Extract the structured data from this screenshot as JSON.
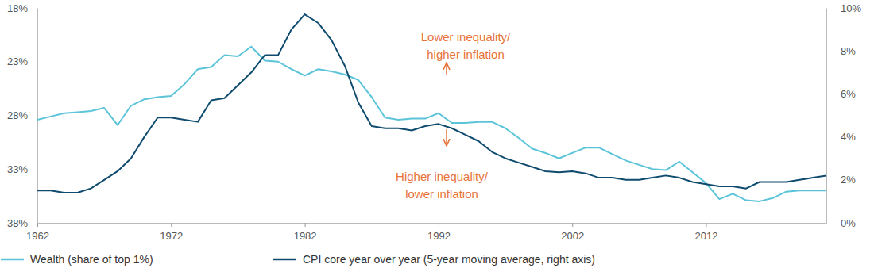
{
  "chart_data": {
    "type": "line",
    "x": [
      1962,
      1963,
      1964,
      1965,
      1966,
      1967,
      1968,
      1969,
      1970,
      1971,
      1972,
      1973,
      1974,
      1975,
      1976,
      1977,
      1978,
      1979,
      1980,
      1981,
      1982,
      1983,
      1984,
      1985,
      1986,
      1987,
      1988,
      1989,
      1990,
      1991,
      1992,
      1993,
      1994,
      1995,
      1996,
      1997,
      1998,
      1999,
      2000,
      2001,
      2002,
      2003,
      2004,
      2005,
      2006,
      2007,
      2008,
      2009,
      2010,
      2011,
      2012,
      2013,
      2014,
      2015,
      2016,
      2017,
      2018,
      2019,
      2020,
      2021
    ],
    "xlim": [
      1962,
      2021
    ],
    "xticks": [
      1962,
      1972,
      1982,
      1992,
      2002,
      2012
    ],
    "ylim": [
      38,
      18
    ],
    "yticks": [
      {
        "value": 18,
        "label": "18%"
      },
      {
        "value": 23,
        "label": "23%"
      },
      {
        "value": 28,
        "label": "28%"
      },
      {
        "value": 33,
        "label": "33%"
      },
      {
        "value": 38,
        "label": "38%"
      }
    ],
    "y2lim": [
      0,
      10
    ],
    "y2ticks": [
      {
        "value": 0,
        "label": "0%"
      },
      {
        "value": 2,
        "label": "2%"
      },
      {
        "value": 4,
        "label": "4%"
      },
      {
        "value": 6,
        "label": "6%"
      },
      {
        "value": 8,
        "label": "8%"
      },
      {
        "value": 10,
        "label": "10%"
      }
    ],
    "series": [
      {
        "name": "Wealth (share of top 1%)",
        "color": "#5bc4d9",
        "values": [
          28.4,
          28.1,
          27.8,
          27.7,
          27.6,
          27.3,
          28.9,
          27.1,
          26.5,
          26.3,
          26.2,
          25.1,
          23.7,
          23.5,
          22.4,
          22.5,
          21.6,
          22.9,
          23.0,
          23.7,
          24.3,
          23.7,
          23.9,
          24.2,
          24.7,
          26.3,
          28.2,
          28.4,
          28.3,
          28.3,
          27.8,
          28.7,
          28.7,
          28.6,
          28.6,
          29.2,
          30.1,
          31.1,
          31.5,
          32.0,
          31.5,
          31.0,
          31.0,
          31.6,
          32.2,
          32.6,
          33.0,
          33.1,
          32.3,
          33.3,
          34.3,
          35.8,
          35.3,
          35.9,
          36.0,
          35.7,
          35.1,
          35.0,
          35.0,
          35.0
        ]
      },
      {
        "name": "CPI core year over year (5-year moving average, right axis)",
        "color": "#0f4b6e",
        "axis": "y2",
        "values": [
          1.5,
          1.5,
          1.4,
          1.4,
          1.6,
          2.0,
          2.4,
          3.0,
          4.0,
          4.9,
          4.9,
          4.8,
          4.7,
          5.7,
          5.8,
          6.4,
          7.0,
          7.8,
          7.8,
          9.0,
          9.7,
          9.3,
          8.5,
          7.3,
          5.6,
          4.5,
          4.4,
          4.4,
          4.3,
          4.5,
          4.6,
          4.4,
          4.1,
          3.8,
          3.3,
          3.0,
          2.8,
          2.6,
          2.4,
          2.35,
          2.4,
          2.3,
          2.1,
          2.1,
          2.0,
          2.0,
          2.1,
          2.2,
          2.1,
          1.9,
          1.8,
          1.7,
          1.7,
          1.6,
          1.9,
          1.9,
          1.9,
          2.0,
          2.1,
          2.2
        ]
      }
    ],
    "annotations": [
      {
        "text": [
          "Lower inequality/",
          "higher inflation"
        ],
        "color": "#e8743b"
      },
      {
        "text": [
          "Higher inequality/",
          "lower inflation"
        ],
        "color": "#e8743b"
      }
    ],
    "grid": false,
    "legend": "bottom"
  }
}
